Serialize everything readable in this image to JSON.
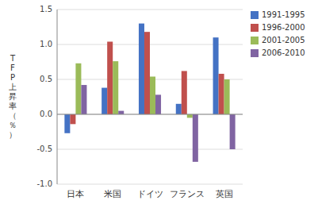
{
  "chart_data": {
    "type": "bar",
    "ylabel": "TFP上昇率（％）",
    "categories": [
      "日本",
      "米国",
      "ドイツ",
      "フランス",
      "英国"
    ],
    "series": [
      {
        "name": "1991-1995",
        "color": "#4472C4",
        "values": [
          -0.27,
          0.38,
          1.3,
          0.15,
          1.1
        ]
      },
      {
        "name": "1996-2000",
        "color": "#C0504D",
        "values": [
          -0.14,
          1.04,
          1.18,
          0.62,
          0.58
        ]
      },
      {
        "name": "2001-2005",
        "color": "#9BBB59",
        "values": [
          0.73,
          0.76,
          0.54,
          -0.05,
          0.5
        ]
      },
      {
        "name": "2006-2010",
        "color": "#8064A2",
        "values": [
          0.42,
          0.05,
          0.28,
          -0.68,
          -0.5
        ]
      }
    ],
    "ylim": [
      -1.0,
      1.5
    ],
    "yticks": [
      {
        "value": -1.0,
        "label": "-1.0"
      },
      -0.5,
      {
        "value": 0.0,
        "label": "0.0"
      },
      0.5,
      {
        "value": 1.0,
        "label": "1.0"
      },
      1.5
    ],
    "grid": true,
    "legend": "upper right"
  }
}
